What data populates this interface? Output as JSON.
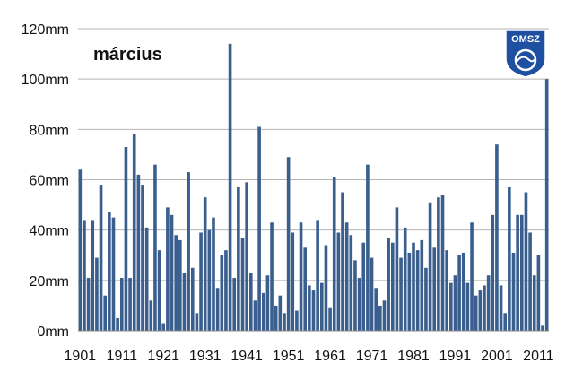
{
  "chart_data": {
    "type": "bar",
    "title": "március",
    "xlabel": "",
    "ylabel": "",
    "ylim": [
      0,
      120
    ],
    "y_ticks": [
      "0mm",
      "20mm",
      "40mm",
      "60mm",
      "80mm",
      "100mm",
      "120mm"
    ],
    "x_ticks": [
      "1901",
      "1911",
      "1921",
      "1931",
      "1941",
      "1951",
      "1961",
      "1971",
      "1981",
      "1991",
      "2001",
      "2011"
    ],
    "grid": true,
    "bar_color": "#3A5F8F",
    "start_year": 1901,
    "values": [
      64,
      44,
      21,
      44,
      29,
      58,
      14,
      47,
      45,
      5,
      21,
      73,
      21,
      78,
      62,
      58,
      41,
      12,
      66,
      32,
      3,
      49,
      46,
      38,
      36,
      23,
      63,
      25,
      7,
      39,
      53,
      40,
      45,
      17,
      30,
      32,
      114,
      21,
      57,
      37,
      59,
      23,
      12,
      81,
      15,
      22,
      43,
      10,
      14,
      7,
      69,
      39,
      8,
      43,
      33,
      18,
      16,
      44,
      19,
      34,
      9,
      61,
      39,
      55,
      43,
      38,
      28,
      21,
      35,
      66,
      29,
      17,
      10,
      12,
      37,
      35,
      49,
      29,
      41,
      31,
      35,
      32,
      36,
      25,
      51,
      33,
      53,
      54,
      32,
      19,
      22,
      30,
      31,
      19,
      43,
      14,
      16,
      18,
      22,
      46,
      74,
      18,
      7,
      57,
      31,
      46,
      46,
      55,
      39,
      22,
      30,
      2,
      100
    ]
  },
  "logo": {
    "text": "OMSZ",
    "color": "#1E4FA0"
  }
}
